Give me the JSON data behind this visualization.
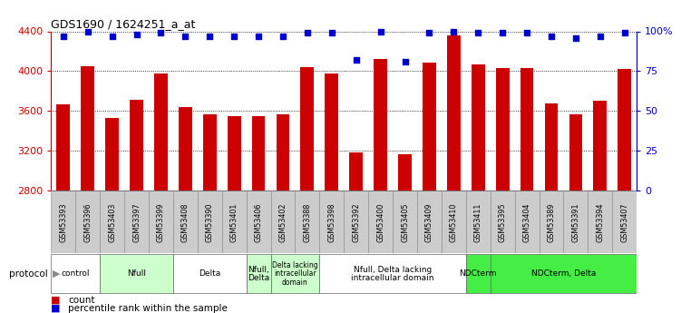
{
  "title": "GDS1690 / 1624251_a_at",
  "samples": [
    "GSM53393",
    "GSM53396",
    "GSM53403",
    "GSM53397",
    "GSM53399",
    "GSM53408",
    "GSM53390",
    "GSM53401",
    "GSM53406",
    "GSM53402",
    "GSM53388",
    "GSM53398",
    "GSM53392",
    "GSM53400",
    "GSM53405",
    "GSM53409",
    "GSM53410",
    "GSM53411",
    "GSM53395",
    "GSM53404",
    "GSM53389",
    "GSM53391",
    "GSM53394",
    "GSM53407"
  ],
  "counts": [
    3670,
    4050,
    3530,
    3710,
    3980,
    3640,
    3570,
    3550,
    3550,
    3570,
    4040,
    3980,
    3190,
    4120,
    3170,
    4090,
    4360,
    4070,
    4030,
    4030,
    3680,
    3570,
    3700,
    4020
  ],
  "percentile": [
    97,
    100,
    97,
    98,
    99,
    97,
    97,
    97,
    97,
    97,
    99,
    99,
    82,
    100,
    81,
    99,
    100,
    99,
    99,
    99,
    97,
    96,
    97,
    99
  ],
  "groups": [
    {
      "label": "control",
      "start": 0,
      "end": 2,
      "color": "#ffffff"
    },
    {
      "label": "Nfull",
      "start": 2,
      "end": 5,
      "color": "#ccffcc"
    },
    {
      "label": "Delta",
      "start": 5,
      "end": 8,
      "color": "#ffffff"
    },
    {
      "label": "Nfull,\nDelta",
      "start": 8,
      "end": 9,
      "color": "#ccffcc"
    },
    {
      "label": "Delta lacking\nintracellular\ndomain",
      "start": 9,
      "end": 11,
      "color": "#ccffcc"
    },
    {
      "label": "Nfull, Delta lacking\nintracellular domain",
      "start": 11,
      "end": 17,
      "color": "#ffffff"
    },
    {
      "label": "NDCterm",
      "start": 17,
      "end": 18,
      "color": "#44ee44"
    },
    {
      "label": "NDCterm, Delta",
      "start": 18,
      "end": 24,
      "color": "#44ee44"
    }
  ],
  "bar_color": "#cc0000",
  "dot_color": "#0000cc",
  "ylim_left": [
    2800,
    4400
  ],
  "ylim_right": [
    0,
    100
  ],
  "yticks_left": [
    2800,
    3200,
    3600,
    4000,
    4400
  ],
  "yticks_right": [
    0,
    25,
    50,
    75,
    100
  ],
  "yticklabels_right": [
    "0",
    "25",
    "50",
    "75",
    "100%"
  ],
  "sample_box_color": "#cccccc",
  "legend_count_label": "count",
  "legend_pct_label": "percentile rank within the sample",
  "protocol_label": "protocol"
}
